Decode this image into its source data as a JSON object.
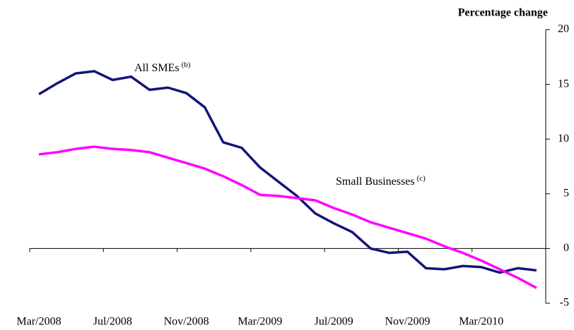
{
  "chart_data": {
    "type": "line",
    "y_label": "Percentage change",
    "categories": [
      "Mar/2008",
      null,
      null,
      null,
      "Jul/2008",
      null,
      null,
      null,
      "Nov/2008",
      null,
      null,
      null,
      "Mar/2009",
      null,
      null,
      null,
      "Jul/2009",
      null,
      null,
      null,
      "Nov/2009",
      null,
      null,
      null,
      "Mar/2010",
      null,
      null,
      null
    ],
    "series": [
      {
        "name": "All SMEs",
        "sup": "(b)",
        "color": "#14147a",
        "values": [
          14.1,
          15.1,
          16.0,
          16.2,
          15.4,
          15.7,
          14.5,
          14.7,
          14.2,
          12.9,
          9.7,
          9.2,
          7.4,
          6.1,
          4.8,
          3.2,
          2.3,
          1.5,
          0.0,
          -0.4,
          -0.3,
          -1.8,
          -1.9,
          -1.6,
          -1.7,
          -2.2,
          -1.8,
          -2.0
        ]
      },
      {
        "name": "Small Businesses",
        "sup": "(c)",
        "color": "#ff00ff",
        "values": [
          8.6,
          8.8,
          9.1,
          9.3,
          9.1,
          9.0,
          8.8,
          8.3,
          7.8,
          7.3,
          6.6,
          5.8,
          4.9,
          4.8,
          4.6,
          4.4,
          3.7,
          3.1,
          2.4,
          1.9,
          1.4,
          0.9,
          0.2,
          -0.4,
          -1.1,
          -1.9,
          -2.7,
          -3.6
        ]
      }
    ],
    "ylim": [
      -5,
      20
    ],
    "yticks": [
      -5,
      0,
      5,
      10,
      15,
      20
    ]
  }
}
